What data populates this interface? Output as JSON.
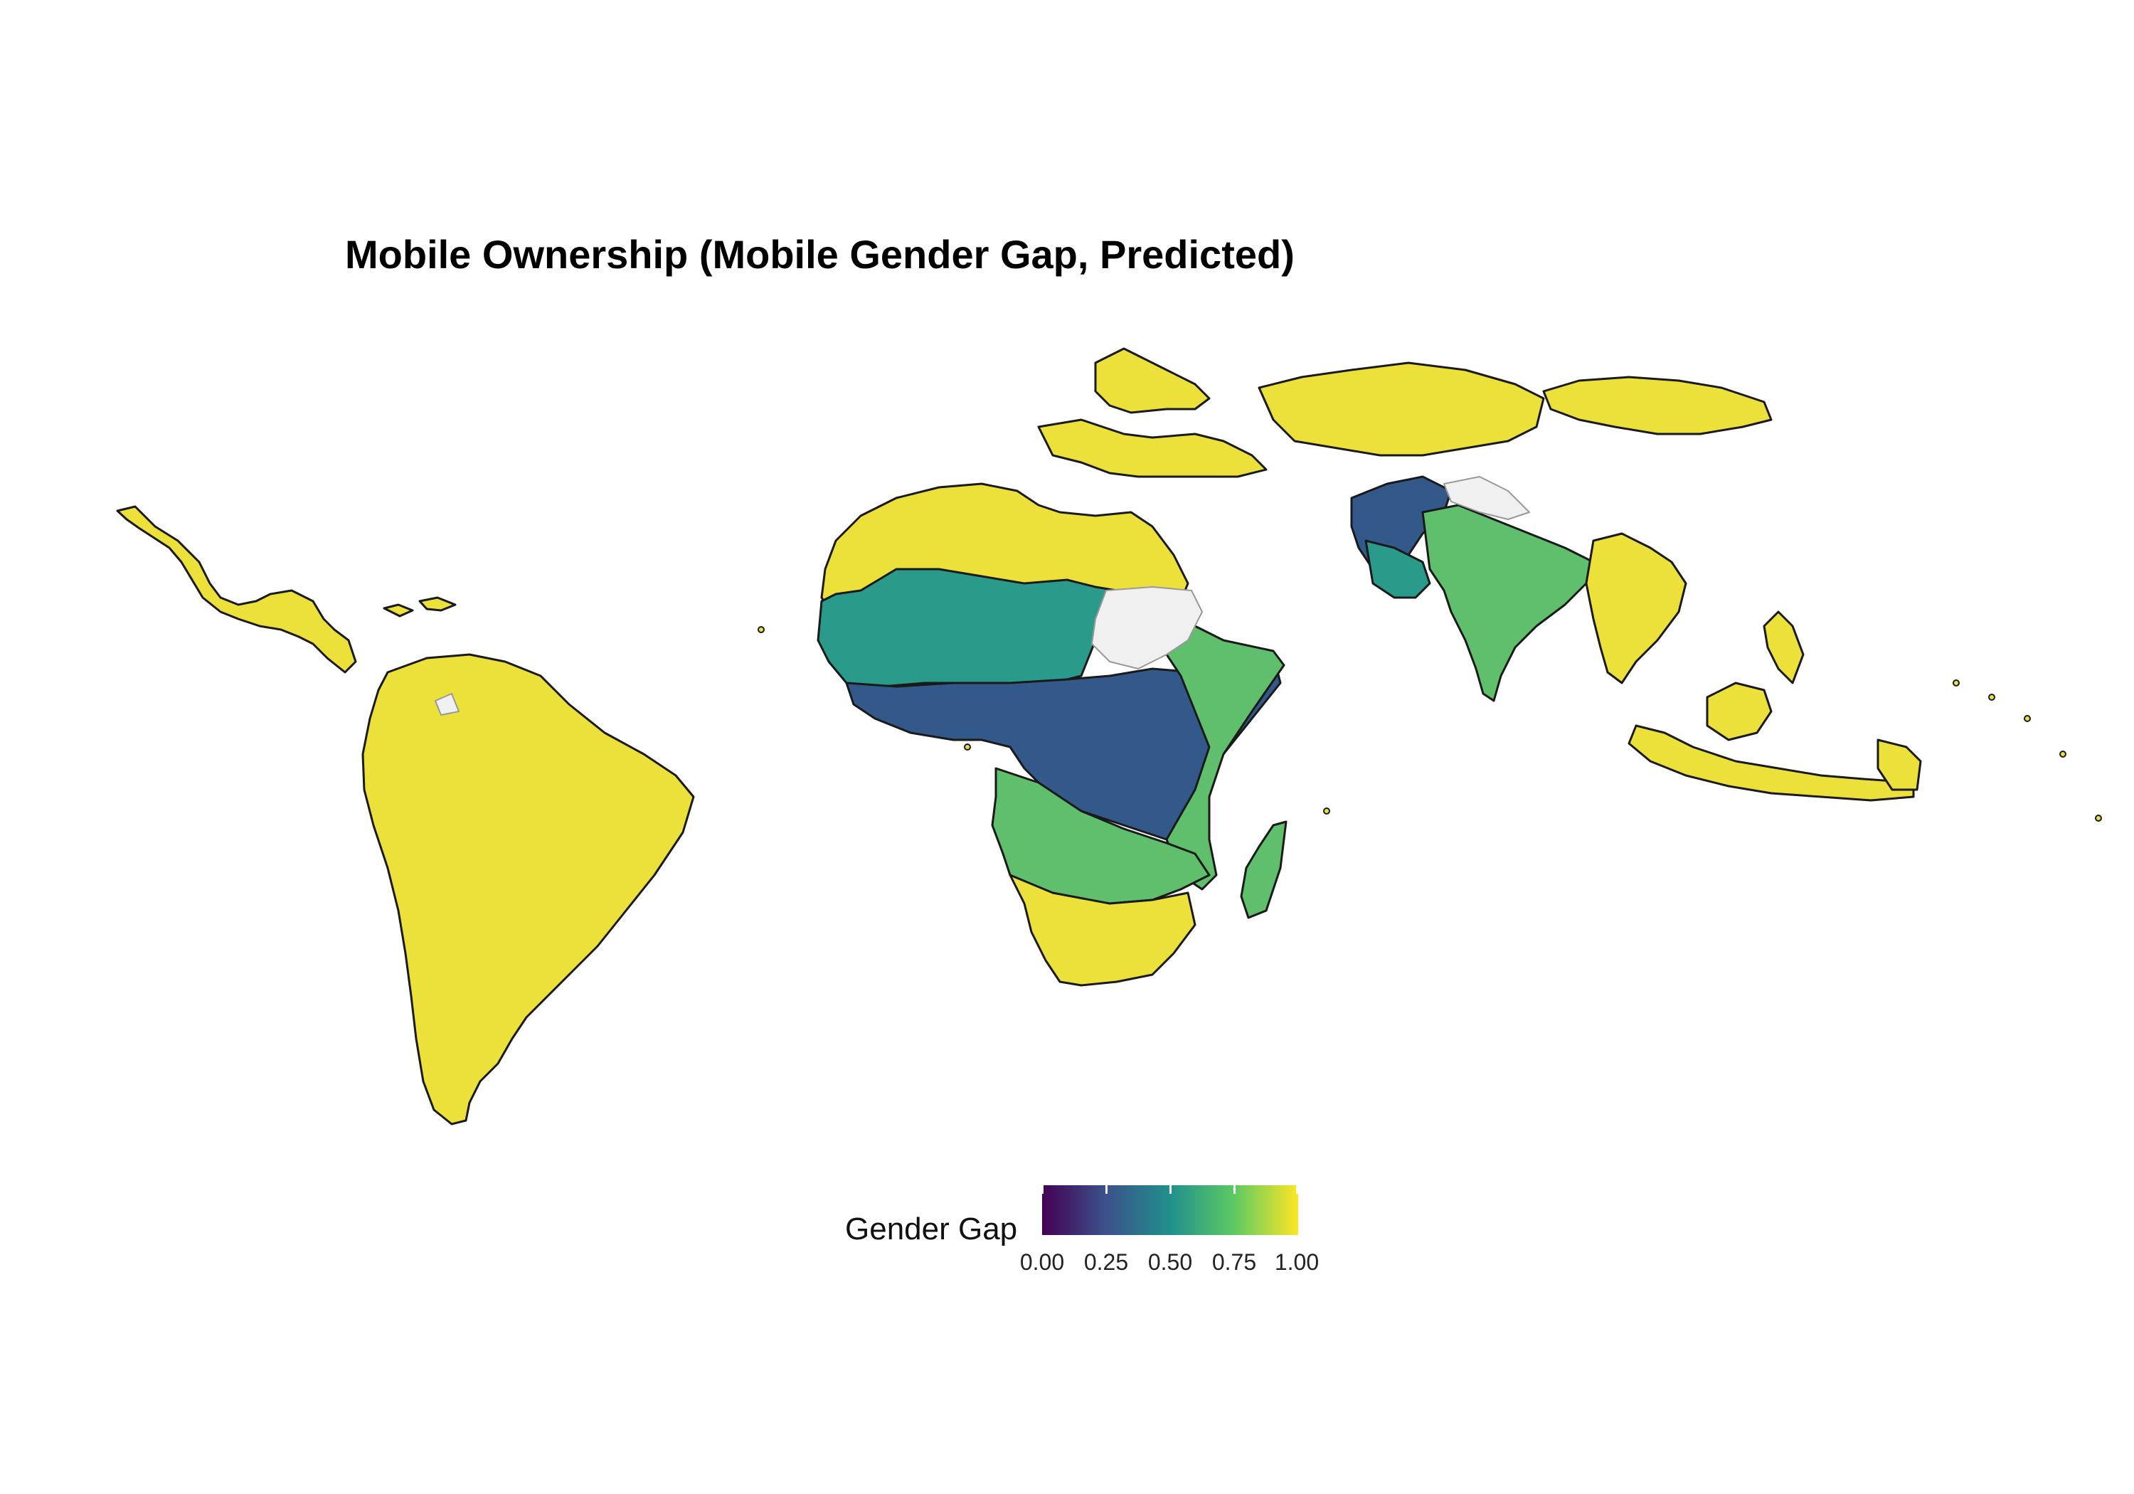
{
  "title": "Mobile Ownership (Mobile Gender Gap, Predicted)",
  "legend": {
    "title": "Gender Gap",
    "ticks": [
      "0.00",
      "0.25",
      "0.50",
      "0.75",
      "1.00"
    ],
    "scale": "viridis",
    "range": [
      0,
      1
    ]
  },
  "colors": {
    "high": "#ece13a",
    "teal": "#2a9a8a",
    "green": "#5fbf6c",
    "dark": "#33598a",
    "no_data": "#f0f0f0",
    "border": "#1a1a1a"
  }
}
